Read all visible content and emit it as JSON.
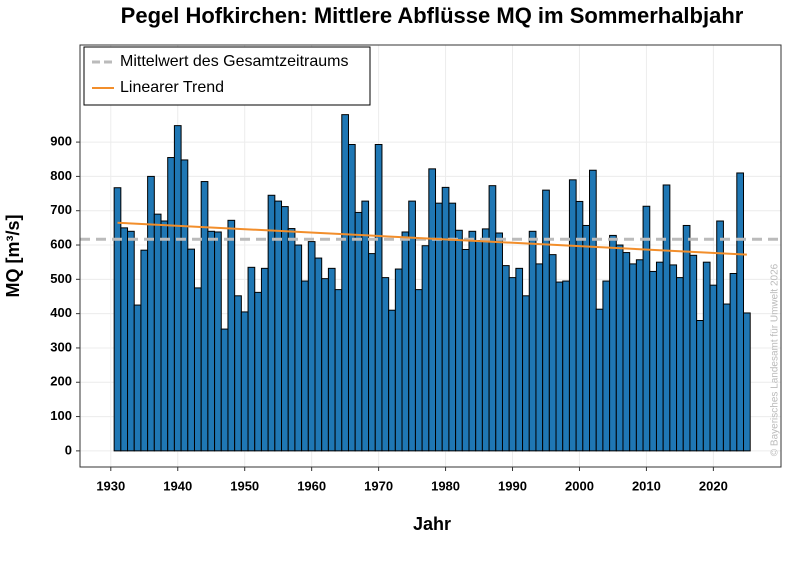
{
  "chart_data": {
    "type": "bar",
    "title": "Pegel Hofkirchen: Mittlere Abflüsse MQ  im Sommerhalbjahr",
    "xlabel": "Jahr",
    "ylabel": "MQ [m³/s]",
    "watermark": "© Bayerisches Landesamt für Umwelt 2026",
    "color": "#1f77b4",
    "x": [
      1931,
      1932,
      1933,
      1934,
      1935,
      1936,
      1937,
      1938,
      1939,
      1940,
      1941,
      1942,
      1943,
      1944,
      1945,
      1946,
      1947,
      1948,
      1949,
      1950,
      1951,
      1952,
      1953,
      1954,
      1955,
      1956,
      1957,
      1958,
      1959,
      1960,
      1961,
      1962,
      1963,
      1964,
      1965,
      1966,
      1967,
      1968,
      1969,
      1970,
      1971,
      1972,
      1973,
      1974,
      1975,
      1976,
      1977,
      1978,
      1979,
      1980,
      1981,
      1982,
      1983,
      1984,
      1985,
      1986,
      1987,
      1988,
      1989,
      1990,
      1991,
      1992,
      1993,
      1994,
      1995,
      1996,
      1997,
      1998,
      1999,
      2000,
      2001,
      2002,
      2003,
      2004,
      2005,
      2006,
      2007,
      2008,
      2009,
      2010,
      2011,
      2012,
      2013,
      2014,
      2015,
      2016,
      2017,
      2018,
      2019,
      2020,
      2021,
      2022,
      2023,
      2024,
      2025
    ],
    "values": [
      767,
      650,
      640,
      425,
      585,
      800,
      690,
      670,
      855,
      948,
      848,
      588,
      475,
      785,
      640,
      638,
      355,
      672,
      452,
      405,
      535,
      462,
      532,
      745,
      728,
      712,
      648,
      600,
      495,
      610,
      562,
      502,
      532,
      470,
      980,
      893,
      695,
      728,
      575,
      893,
      505,
      410,
      530,
      638,
      728,
      470,
      598,
      822,
      722,
      768,
      722,
      643,
      587,
      640,
      613,
      647,
      773,
      635,
      540,
      505,
      532,
      452,
      640,
      545,
      760,
      572,
      492,
      495,
      790,
      727,
      657,
      818,
      413,
      495,
      628,
      600,
      578,
      545,
      557,
      713,
      523,
      550,
      775,
      542,
      505,
      657,
      570,
      380,
      550,
      483,
      670,
      428,
      517,
      810,
      402
    ],
    "reference_line": {
      "name": "Mittelwert des Gesamtzeitraums",
      "color": "#bbbbbb",
      "value": 617,
      "dashed": true
    },
    "trend": {
      "name": "Linearer Trend",
      "color": "#f28e2b",
      "x": [
        1931,
        2025
      ],
      "values": [
        665,
        572
      ]
    },
    "xlim": [
      1925.4,
      2030.1
    ],
    "ylim": [
      -47,
      1183
    ],
    "xticks": [
      1930,
      1940,
      1950,
      1960,
      1970,
      1980,
      1990,
      2000,
      2010,
      2020
    ],
    "yticks": [
      0,
      100,
      200,
      300,
      400,
      500,
      600,
      700,
      800,
      900
    ],
    "grid": true
  }
}
